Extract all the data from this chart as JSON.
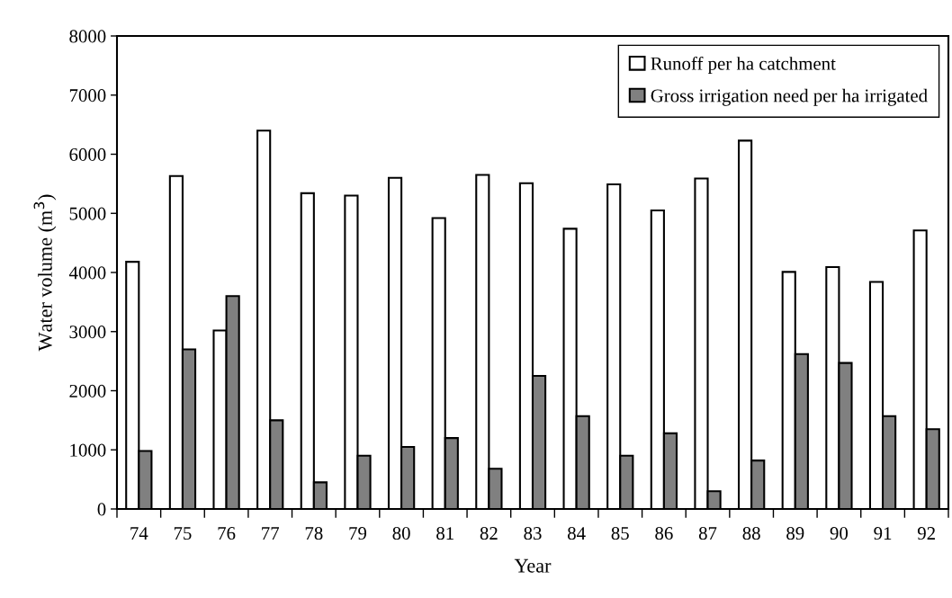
{
  "chart_data": {
    "type": "bar",
    "xlabel": "Year",
    "ylabel": "Water volume (m$^{3}$)",
    "categories": [
      "74",
      "75",
      "76",
      "77",
      "78",
      "79",
      "80",
      "81",
      "82",
      "83",
      "84",
      "85",
      "86",
      "87",
      "88",
      "89",
      "90",
      "91",
      "92"
    ],
    "series": [
      {
        "name": "Runoff per ha catchment",
        "color": "#ffffff",
        "values": [
          4180,
          5630,
          3020,
          6400,
          5340,
          5300,
          5600,
          4920,
          5650,
          5510,
          4740,
          5490,
          5050,
          5590,
          6230,
          4010,
          4090,
          3840,
          4710
        ]
      },
      {
        "name": "Gross irrigation need per ha irrigated",
        "color": "#808080",
        "values": [
          980,
          2700,
          3600,
          1500,
          450,
          900,
          1050,
          1200,
          680,
          2250,
          1570,
          900,
          1280,
          300,
          820,
          2620,
          2470,
          1570,
          1350
        ]
      }
    ],
    "ylim": [
      0,
      8000
    ],
    "yticks": [
      0,
      1000,
      2000,
      3000,
      4000,
      5000,
      6000,
      7000,
      8000
    ],
    "grid": false,
    "legend": "top right"
  }
}
